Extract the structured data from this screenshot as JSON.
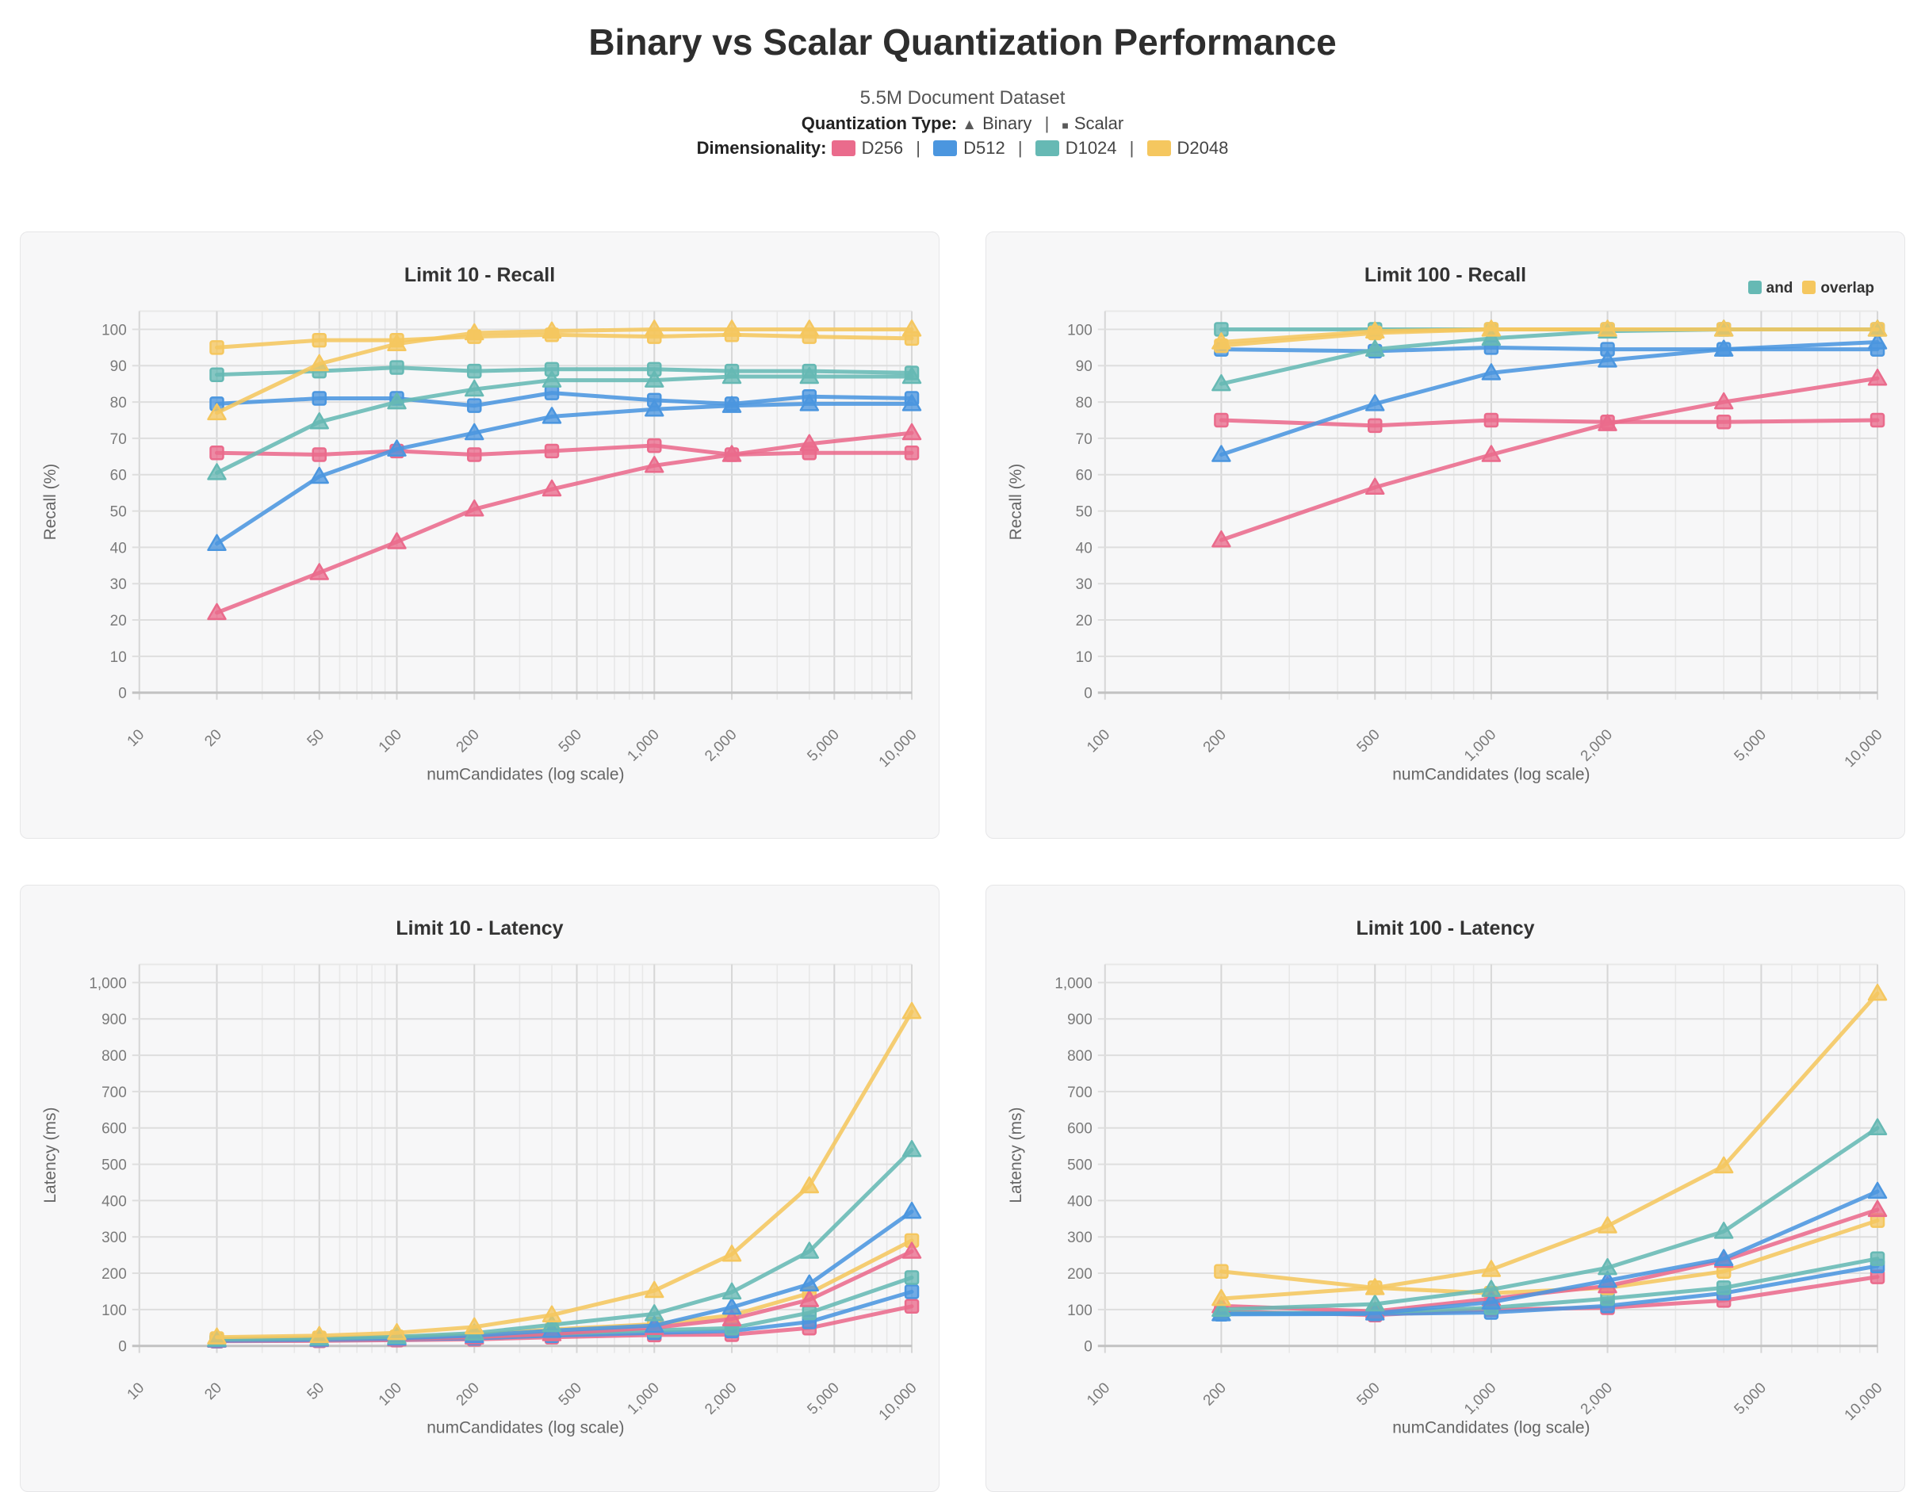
{
  "header": {
    "title": "Binary vs Scalar Quantization Performance",
    "subtitle": "5.5M Document Dataset",
    "quantization_label": "Quantization Type:",
    "quantization_items": [
      {
        "glyph": "▲",
        "label": "Binary"
      },
      {
        "glyph": "■",
        "label": "Scalar"
      }
    ],
    "separator": "|",
    "dimensionality_label": "Dimensionality:",
    "dimensionality_items": [
      {
        "label": "D256",
        "color": "#EA6B8C"
      },
      {
        "label": "D512",
        "color": "#4B96DF"
      },
      {
        "label": "D1024",
        "color": "#66B9B4"
      },
      {
        "label": "D2048",
        "color": "#F5C75F"
      }
    ]
  },
  "colors": {
    "D256": "#EA6B8C",
    "D512": "#4B96DF",
    "D1024": "#66B9B4",
    "D2048": "#F5C75F",
    "grid_minor": "#e8e8e8",
    "grid_major": "#d6d6d6",
    "axis_zero": "#c2c2c2",
    "tick_text": "#7a7a7a",
    "axis_label": "#666666"
  },
  "chart_data": [
    {
      "id": "limit10-recall",
      "type": "line",
      "title": "Limit 10 - Recall",
      "xlabel": "numCandidates (log scale)",
      "ylabel": "Recall (%)",
      "x_scale": "log",
      "x_domain": [
        10,
        10000
      ],
      "y_domain": [
        0,
        105
      ],
      "x_tick_values": [
        10,
        20,
        50,
        100,
        200,
        500,
        1000,
        2000,
        5000,
        10000
      ],
      "x_ticks": [
        "10",
        "20",
        "50",
        "100",
        "200",
        "500",
        "1,000",
        "2,000",
        "5,000",
        "10,000"
      ],
      "y_tick_values": [
        0,
        10,
        20,
        30,
        40,
        50,
        60,
        70,
        80,
        90,
        100
      ],
      "y_ticks": [
        "0",
        "10",
        "20",
        "30",
        "40",
        "50",
        "60",
        "70",
        "80",
        "90",
        "100"
      ],
      "x": [
        20,
        50,
        100,
        200,
        400,
        1000,
        2000,
        4000,
        10000
      ],
      "series": [
        {
          "name": "D256 Scalar",
          "dim": "D256",
          "quantization": "Scalar",
          "marker": "square",
          "color": "#EA6B8C",
          "values": [
            66,
            65.5,
            66.5,
            65.5,
            66.5,
            68,
            65.5,
            66,
            66
          ]
        },
        {
          "name": "D512 Scalar",
          "dim": "D512",
          "quantization": "Scalar",
          "marker": "square",
          "color": "#4B96DF",
          "values": [
            79.5,
            81,
            81,
            79,
            82.5,
            80.5,
            79.5,
            81.5,
            81
          ]
        },
        {
          "name": "D1024 Scalar",
          "dim": "D1024",
          "quantization": "Scalar",
          "marker": "square",
          "color": "#66B9B4",
          "values": [
            87.5,
            88.5,
            89.5,
            88.5,
            89,
            89,
            88.5,
            88.5,
            88
          ]
        },
        {
          "name": "D2048 Scalar",
          "dim": "D2048",
          "quantization": "Scalar",
          "marker": "square",
          "color": "#F5C75F",
          "values": [
            95,
            97,
            97,
            98,
            98.5,
            98,
            98.5,
            98,
            97.5
          ]
        },
        {
          "name": "D256 Binary",
          "dim": "D256",
          "quantization": "Binary",
          "marker": "triangle",
          "color": "#EA6B8C",
          "values": [
            22,
            33,
            41.5,
            50.5,
            56,
            62.5,
            65.5,
            68.5,
            71.5
          ]
        },
        {
          "name": "D512 Binary",
          "dim": "D512",
          "quantization": "Binary",
          "marker": "triangle",
          "color": "#4B96DF",
          "values": [
            41,
            59.5,
            67,
            71.5,
            76,
            78,
            79,
            79.5,
            79.5
          ]
        },
        {
          "name": "D1024 Binary",
          "dim": "D1024",
          "quantization": "Binary",
          "marker": "triangle",
          "color": "#66B9B4",
          "values": [
            60.5,
            74.5,
            80,
            83.5,
            86,
            86,
            87,
            87,
            87
          ]
        },
        {
          "name": "D2048 Binary",
          "dim": "D2048",
          "quantization": "Binary",
          "marker": "triangle",
          "color": "#F5C75F",
          "values": [
            77,
            90.5,
            96,
            99,
            99.5,
            100,
            100,
            100,
            100
          ]
        }
      ]
    },
    {
      "id": "limit100-recall",
      "type": "line",
      "title": "Limit 100 - Recall",
      "xlabel": "numCandidates (log scale)",
      "ylabel": "Recall (%)",
      "x_scale": "log",
      "x_domain": [
        100,
        10000
      ],
      "y_domain": [
        0,
        105
      ],
      "x_tick_values": [
        100,
        200,
        500,
        1000,
        2000,
        5000,
        10000
      ],
      "x_ticks": [
        "100",
        "200",
        "500",
        "1,000",
        "2,000",
        "5,000",
        "10,000"
      ],
      "y_tick_values": [
        0,
        10,
        20,
        30,
        40,
        50,
        60,
        70,
        80,
        90,
        100
      ],
      "y_ticks": [
        "0",
        "10",
        "20",
        "30",
        "40",
        "50",
        "60",
        "70",
        "80",
        "90",
        "100"
      ],
      "corner_legend": [
        {
          "label": "and",
          "color": "#66B9B4"
        },
        {
          "label": "overlap",
          "color": "#F5C75F"
        }
      ],
      "x": [
        200,
        500,
        1000,
        2000,
        4000,
        10000
      ],
      "series": [
        {
          "name": "D256 Scalar",
          "dim": "D256",
          "quantization": "Scalar",
          "marker": "square",
          "color": "#EA6B8C",
          "values": [
            75,
            73.5,
            75,
            74.5,
            74.5,
            75
          ]
        },
        {
          "name": "D512 Scalar",
          "dim": "D512",
          "quantization": "Scalar",
          "marker": "square",
          "color": "#4B96DF",
          "values": [
            94.5,
            94,
            95,
            94.5,
            94.5,
            94.5
          ]
        },
        {
          "name": "D1024 Scalar",
          "dim": "D1024",
          "quantization": "Scalar",
          "marker": "square",
          "color": "#66B9B4",
          "values": [
            100,
            100,
            100,
            100,
            100,
            100
          ]
        },
        {
          "name": "D2048 Scalar",
          "dim": "D2048",
          "quantization": "Scalar",
          "marker": "square",
          "color": "#F5C75F",
          "values": [
            95.5,
            99,
            100,
            100,
            100,
            100
          ]
        },
        {
          "name": "D256 Binary",
          "dim": "D256",
          "quantization": "Binary",
          "marker": "triangle",
          "color": "#EA6B8C",
          "values": [
            42,
            56.5,
            65.5,
            74,
            80,
            86.5
          ]
        },
        {
          "name": "D512 Binary",
          "dim": "D512",
          "quantization": "Binary",
          "marker": "triangle",
          "color": "#4B96DF",
          "values": [
            65.5,
            79.5,
            88,
            91.5,
            94.5,
            96.5
          ]
        },
        {
          "name": "D1024 Binary",
          "dim": "D1024",
          "quantization": "Binary",
          "marker": "triangle",
          "color": "#66B9B4",
          "values": [
            85,
            94.5,
            97.5,
            99.5,
            100,
            100
          ]
        },
        {
          "name": "D2048 Binary",
          "dim": "D2048",
          "quantization": "Binary",
          "marker": "triangle",
          "color": "#F5C75F",
          "values": [
            96.5,
            99.5,
            100,
            100,
            100,
            100
          ]
        }
      ]
    },
    {
      "id": "limit10-latency",
      "type": "line",
      "title": "Limit 10 - Latency",
      "xlabel": "numCandidates (log scale)",
      "ylabel": "Latency (ms)",
      "x_scale": "log",
      "x_domain": [
        10,
        10000
      ],
      "y_domain": [
        0,
        1050
      ],
      "x_tick_values": [
        10,
        20,
        50,
        100,
        200,
        500,
        1000,
        2000,
        5000,
        10000
      ],
      "x_ticks": [
        "10",
        "20",
        "50",
        "100",
        "200",
        "500",
        "1,000",
        "2,000",
        "5,000",
        "10,000"
      ],
      "y_tick_values": [
        0,
        100,
        200,
        300,
        400,
        500,
        600,
        700,
        800,
        900,
        1000
      ],
      "y_ticks": [
        "0",
        "100",
        "200",
        "300",
        "400",
        "500",
        "600",
        "700",
        "800",
        "900",
        "1,000"
      ],
      "x": [
        20,
        50,
        100,
        200,
        400,
        1000,
        2000,
        4000,
        10000
      ],
      "series": [
        {
          "name": "D256 Scalar",
          "dim": "D256",
          "quantization": "Scalar",
          "marker": "square",
          "color": "#EA6B8C",
          "values": [
            13,
            14,
            16,
            18,
            24,
            30,
            31,
            49,
            109
          ]
        },
        {
          "name": "D512 Scalar",
          "dim": "D512",
          "quantization": "Scalar",
          "marker": "square",
          "color": "#4B96DF",
          "values": [
            14,
            16,
            18,
            21,
            28,
            36,
            41,
            66,
            149
          ]
        },
        {
          "name": "D1024 Scalar",
          "dim": "D1024",
          "quantization": "Scalar",
          "marker": "square",
          "color": "#66B9B4",
          "values": [
            16,
            18,
            20,
            25,
            33,
            43,
            49,
            91,
            188
          ]
        },
        {
          "name": "D2048 Scalar",
          "dim": "D2048",
          "quantization": "Scalar",
          "marker": "square",
          "color": "#F5C75F",
          "values": [
            20,
            22,
            25,
            30,
            45,
            60,
            84,
            145,
            290
          ]
        },
        {
          "name": "D256 Binary",
          "dim": "D256",
          "quantization": "Binary",
          "marker": "triangle",
          "color": "#EA6B8C",
          "values": [
            15,
            17,
            19,
            24,
            33,
            50,
            74,
            127,
            260
          ]
        },
        {
          "name": "D512 Binary",
          "dim": "D512",
          "quantization": "Binary",
          "marker": "triangle",
          "color": "#4B96DF",
          "values": [
            16,
            18,
            21,
            28,
            42,
            56,
            106,
            170,
            370
          ]
        },
        {
          "name": "D1024 Binary",
          "dim": "D1024",
          "quantization": "Binary",
          "marker": "triangle",
          "color": "#66B9B4",
          "values": [
            18,
            21,
            25,
            35,
            58,
            88,
            148,
            260,
            540
          ]
        },
        {
          "name": "D2048 Binary",
          "dim": "D2048",
          "quantization": "Binary",
          "marker": "triangle",
          "color": "#F5C75F",
          "values": [
            24,
            28,
            36,
            52,
            85,
            152,
            252,
            440,
            920
          ]
        }
      ]
    },
    {
      "id": "limit100-latency",
      "type": "line",
      "title": "Limit 100 - Latency",
      "xlabel": "numCandidates (log scale)",
      "ylabel": "Latency (ms)",
      "x_scale": "log",
      "x_domain": [
        100,
        10000
      ],
      "y_domain": [
        0,
        1050
      ],
      "x_tick_values": [
        100,
        200,
        500,
        1000,
        2000,
        5000,
        10000
      ],
      "x_ticks": [
        "100",
        "200",
        "500",
        "1,000",
        "2,000",
        "5,000",
        "10,000"
      ],
      "y_tick_values": [
        0,
        100,
        200,
        300,
        400,
        500,
        600,
        700,
        800,
        900,
        1000
      ],
      "y_ticks": [
        "0",
        "100",
        "200",
        "300",
        "400",
        "500",
        "600",
        "700",
        "800",
        "900",
        "1,000"
      ],
      "x": [
        200,
        500,
        1000,
        2000,
        4000,
        10000
      ],
      "series": [
        {
          "name": "D256 Scalar",
          "dim": "D256",
          "quantization": "Scalar",
          "marker": "square",
          "color": "#EA6B8C",
          "values": [
            95,
            85,
            100,
            105,
            125,
            190
          ]
        },
        {
          "name": "D512 Scalar",
          "dim": "D512",
          "quantization": "Scalar",
          "marker": "square",
          "color": "#4B96DF",
          "values": [
            87,
            88,
            92,
            110,
            145,
            220
          ]
        },
        {
          "name": "D1024 Scalar",
          "dim": "D1024",
          "quantization": "Scalar",
          "marker": "square",
          "color": "#66B9B4",
          "values": [
            90,
            92,
            105,
            130,
            160,
            240
          ]
        },
        {
          "name": "D2048 Scalar",
          "dim": "D2048",
          "quantization": "Scalar",
          "marker": "square",
          "color": "#F5C75F",
          "values": [
            205,
            160,
            145,
            160,
            205,
            345
          ]
        },
        {
          "name": "D256 Binary",
          "dim": "D256",
          "quantization": "Binary",
          "marker": "triangle",
          "color": "#EA6B8C",
          "values": [
            110,
            95,
            130,
            165,
            235,
            375
          ]
        },
        {
          "name": "D512 Binary",
          "dim": "D512",
          "quantization": "Binary",
          "marker": "triangle",
          "color": "#4B96DF",
          "values": [
            88,
            90,
            120,
            180,
            240,
            425
          ]
        },
        {
          "name": "D1024 Binary",
          "dim": "D1024",
          "quantization": "Binary",
          "marker": "triangle",
          "color": "#66B9B4",
          "values": [
            100,
            115,
            155,
            215,
            315,
            600
          ]
        },
        {
          "name": "D2048 Binary",
          "dim": "D2048",
          "quantization": "Binary",
          "marker": "triangle",
          "color": "#F5C75F",
          "values": [
            130,
            160,
            210,
            330,
            495,
            970
          ]
        }
      ]
    }
  ]
}
